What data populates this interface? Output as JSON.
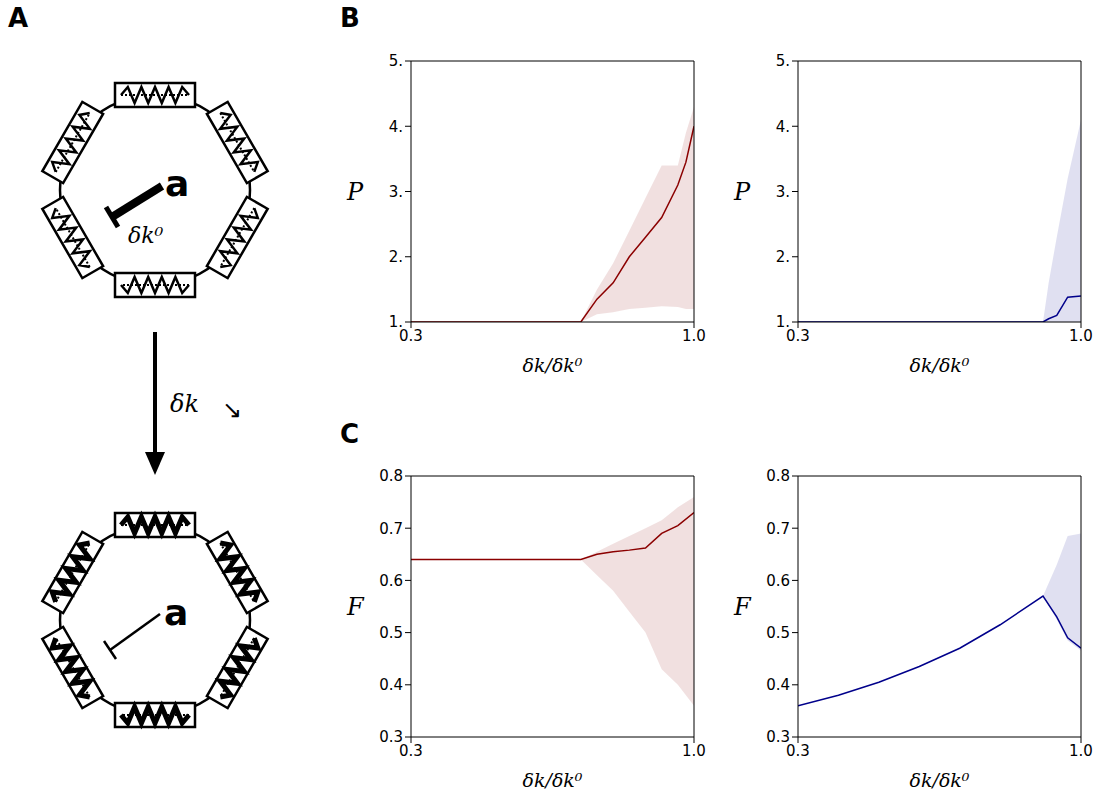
{
  "panels": [
    "A",
    "B",
    "C"
  ],
  "diagram": {
    "top": {
      "radius_label": "a",
      "stiffness_label": "δk⁰"
    },
    "arrow_label": "δk",
    "arrow_symbol": "↘",
    "bottom": {
      "radius_label": "a"
    }
  },
  "chart_data": [
    {
      "type": "line",
      "panel": "B",
      "xlabel": "δk/δk⁰",
      "ylabel": "P",
      "color": "#8b0000",
      "xlim": [
        0.3,
        1.0
      ],
      "xticks": [
        0.3,
        {
          "value": 1.0,
          "label": "1.0"
        }
      ],
      "ylim": [
        1,
        5
      ],
      "yticks": [
        {
          "value": 1,
          "label": "1."
        },
        {
          "value": 2,
          "label": "2."
        },
        {
          "value": 3,
          "label": "3."
        },
        {
          "value": 4,
          "label": "4."
        },
        {
          "value": 5,
          "label": "5."
        }
      ],
      "x": [
        0.3,
        0.72,
        0.76,
        0.8,
        0.84,
        0.88,
        0.92,
        0.96,
        0.98,
        1.0
      ],
      "values": [
        1,
        1,
        1.35,
        1.6,
        2.0,
        2.3,
        2.6,
        3.1,
        3.45,
        4.0
      ],
      "band_lower": [
        1,
        1,
        1.12,
        1.15,
        1.2,
        1.22,
        1.24,
        1.23,
        1.2,
        1.2
      ],
      "band_upper": [
        1,
        1,
        1.5,
        1.9,
        2.4,
        2.9,
        3.4,
        3.4,
        3.9,
        4.3
      ]
    },
    {
      "type": "line",
      "panel": "B",
      "xlabel": "δk/δk⁰",
      "ylabel": "P",
      "color": "#00008b",
      "xlim": [
        0.3,
        1.0
      ],
      "xticks": [
        0.3,
        {
          "value": 1.0,
          "label": "1.0"
        }
      ],
      "ylim": [
        1,
        5
      ],
      "yticks": [
        {
          "value": 1,
          "label": "1."
        },
        {
          "value": 2,
          "label": "2."
        },
        {
          "value": 3,
          "label": "3."
        },
        {
          "value": 4,
          "label": "4."
        },
        {
          "value": 5,
          "label": "5."
        }
      ],
      "x": [
        0.3,
        0.906,
        0.92,
        0.94,
        0.967,
        1.0
      ],
      "values": [
        1,
        1,
        1.05,
        1.1,
        1.38,
        1.4
      ],
      "band_lower": [
        1,
        1,
        1,
        1,
        1,
        1
      ],
      "band_upper": [
        1,
        1,
        1.6,
        2.3,
        3.2,
        4.1
      ]
    },
    {
      "type": "line",
      "panel": "C",
      "xlabel": "δk/δk⁰",
      "ylabel": "F",
      "color": "#8b0000",
      "xlim": [
        0.3,
        1.0
      ],
      "xticks": [
        0.3,
        {
          "value": 1.0,
          "label": "1.0"
        }
      ],
      "ylim": [
        0.3,
        0.8
      ],
      "yticks": [
        0.3,
        0.4,
        0.5,
        0.6,
        0.7,
        0.8
      ],
      "x": [
        0.3,
        0.72,
        0.76,
        0.8,
        0.84,
        0.88,
        0.92,
        0.96,
        1.0
      ],
      "values": [
        0.64,
        0.64,
        0.65,
        0.655,
        0.658,
        0.662,
        0.69,
        0.705,
        0.73
      ],
      "band_lower": [
        0.64,
        0.64,
        0.61,
        0.58,
        0.54,
        0.5,
        0.43,
        0.4,
        0.36
      ],
      "band_upper": [
        0.64,
        0.64,
        0.655,
        0.67,
        0.685,
        0.7,
        0.715,
        0.74,
        0.76
      ]
    },
    {
      "type": "line",
      "panel": "C",
      "xlabel": "δk/δk⁰",
      "ylabel": "F",
      "color": "#00008b",
      "xlim": [
        0.3,
        1.0
      ],
      "xticks": [
        0.3,
        {
          "value": 1.0,
          "label": "1.0"
        }
      ],
      "ylim": [
        0.3,
        0.8
      ],
      "yticks": [
        0.3,
        0.4,
        0.5,
        0.6,
        0.7,
        0.8
      ],
      "x": [
        0.3,
        0.4,
        0.5,
        0.6,
        0.7,
        0.8,
        0.906,
        0.94,
        0.967,
        1.0
      ],
      "values": [
        0.36,
        0.38,
        0.405,
        0.435,
        0.47,
        0.515,
        0.57,
        0.53,
        0.49,
        0.47
      ],
      "band_lower": [
        0.36,
        0.38,
        0.405,
        0.435,
        0.47,
        0.515,
        0.57,
        0.525,
        0.485,
        0.465
      ],
      "band_upper": [
        0.36,
        0.38,
        0.405,
        0.435,
        0.47,
        0.515,
        0.57,
        0.63,
        0.685,
        0.69
      ]
    }
  ]
}
